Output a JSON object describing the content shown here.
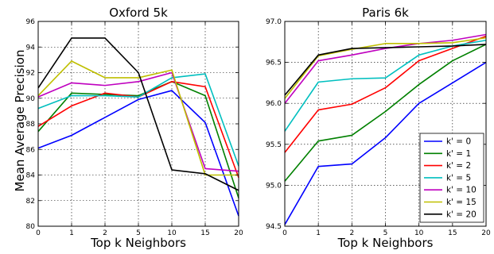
{
  "figure": {
    "ylabel": "Mean Average Precision"
  },
  "chart_data": [
    {
      "type": "line",
      "title": "Oxford 5k",
      "xlabel": "Top k Neighbors",
      "ylabel": "Mean Average Precision",
      "x": [
        "0",
        "1",
        "2",
        "5",
        "10",
        "15",
        "20"
      ],
      "ylim": [
        80,
        96
      ],
      "yticks": [
        "80",
        "82",
        "84",
        "86",
        "88",
        "90",
        "92",
        "94",
        "96"
      ],
      "grid": true,
      "series": [
        {
          "name": "k' = 0",
          "color": "#0000ff",
          "values": [
            86.1,
            87.1,
            88.5,
            89.9,
            90.6,
            88.1,
            80.8
          ]
        },
        {
          "name": "k' = 1",
          "color": "#008000",
          "values": [
            87.4,
            90.4,
            90.3,
            90.2,
            91.3,
            90.2,
            82.2
          ]
        },
        {
          "name": "k' = 2",
          "color": "#ff0000",
          "values": [
            87.8,
            89.4,
            90.4,
            90.1,
            91.3,
            90.9,
            83.8
          ]
        },
        {
          "name": "k' = 5",
          "color": "#00bfbf",
          "values": [
            89.2,
            90.2,
            90.2,
            90.1,
            91.6,
            91.9,
            84.7
          ]
        },
        {
          "name": "k' = 10",
          "color": "#bf00bf",
          "values": [
            90.1,
            91.2,
            91.0,
            91.3,
            92.0,
            84.5,
            84.3
          ]
        },
        {
          "name": "k' = 15",
          "color": "#bfbf00",
          "values": [
            90.2,
            92.9,
            91.6,
            91.6,
            92.2,
            84.0,
            84.0
          ]
        },
        {
          "name": "k' = 20",
          "color": "#000000",
          "values": [
            90.8,
            94.7,
            94.7,
            92.0,
            84.4,
            84.1,
            82.8
          ]
        }
      ]
    },
    {
      "type": "line",
      "title": "Paris 6k",
      "xlabel": "Top k Neighbors",
      "ylabel": "",
      "x": [
        "0",
        "1",
        "2",
        "5",
        "10",
        "15",
        "20"
      ],
      "ylim": [
        94.5,
        97.0
      ],
      "yticks": [
        "94.5",
        "95.0",
        "95.5",
        "96.0",
        "96.5",
        "97.0"
      ],
      "grid": true,
      "legend": {
        "position": "lower-right"
      },
      "series": [
        {
          "name": "k' = 0",
          "color": "#0000ff",
          "values": [
            94.52,
            95.23,
            95.26,
            95.58,
            96.0,
            96.25,
            96.5
          ]
        },
        {
          "name": "k' = 1",
          "color": "#008000",
          "values": [
            95.05,
            95.54,
            95.61,
            95.9,
            96.23,
            96.52,
            96.72
          ]
        },
        {
          "name": "k' = 2",
          "color": "#ff0000",
          "values": [
            95.4,
            95.92,
            95.99,
            96.19,
            96.52,
            96.67,
            96.82
          ]
        },
        {
          "name": "k' = 5",
          "color": "#00bfbf",
          "values": [
            95.66,
            96.26,
            96.3,
            96.31,
            96.59,
            96.7,
            96.77
          ]
        },
        {
          "name": "k' = 10",
          "color": "#bf00bf",
          "values": [
            96.0,
            96.52,
            96.59,
            96.67,
            96.73,
            96.77,
            96.84
          ]
        },
        {
          "name": "k' = 15",
          "color": "#bfbf00",
          "values": [
            96.06,
            96.58,
            96.66,
            96.73,
            96.73,
            96.74,
            96.8
          ]
        },
        {
          "name": "k' = 20",
          "color": "#000000",
          "values": [
            96.1,
            96.59,
            96.67,
            96.68,
            96.69,
            96.7,
            96.72
          ]
        }
      ]
    }
  ]
}
